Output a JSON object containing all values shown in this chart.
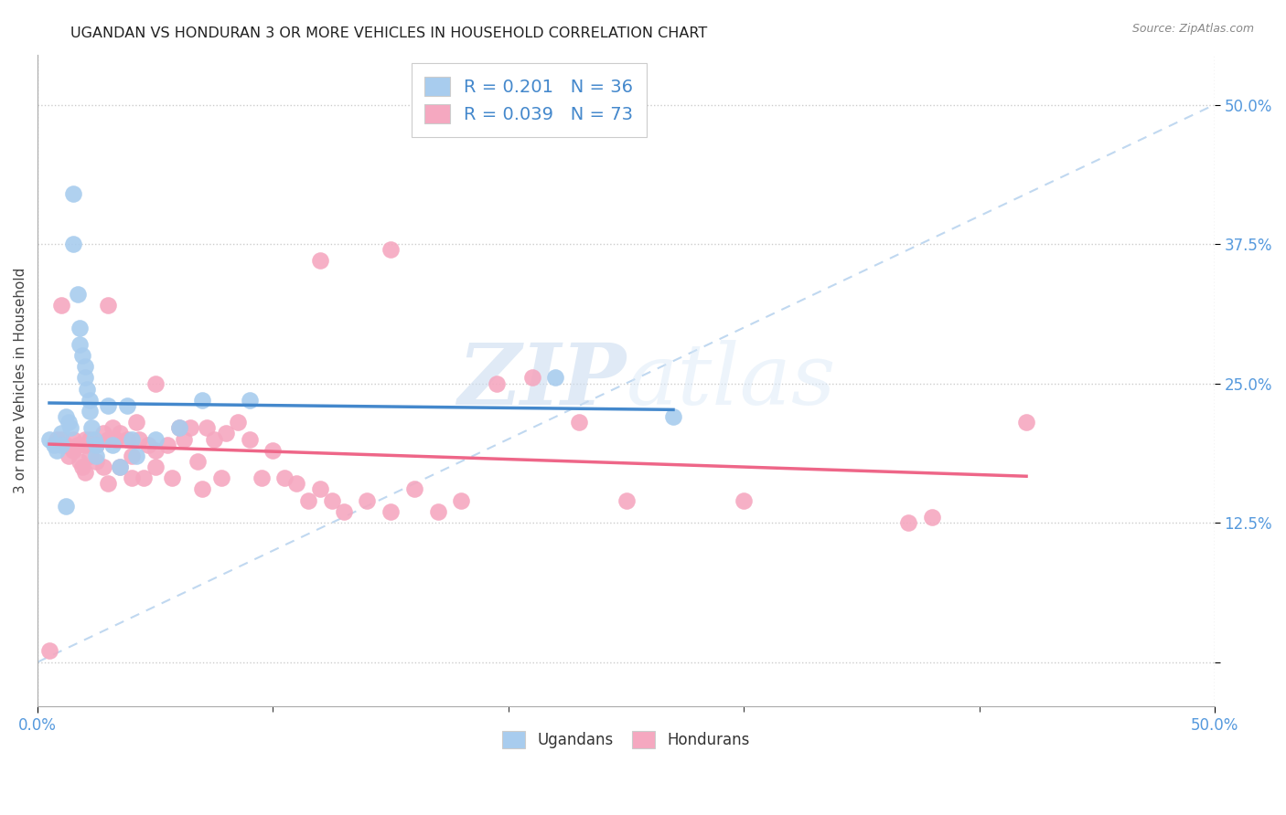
{
  "title": "UGANDAN VS HONDURAN 3 OR MORE VEHICLES IN HOUSEHOLD CORRELATION CHART",
  "source": "Source: ZipAtlas.com",
  "ylabel": "3 or more Vehicles in Household",
  "xlim": [
    0.0,
    0.5
  ],
  "ylim": [
    -0.04,
    0.545
  ],
  "yticks": [
    0.0,
    0.125,
    0.25,
    0.375,
    0.5
  ],
  "ytick_labels": [
    "",
    "12.5%",
    "25.0%",
    "37.5%",
    "50.0%"
  ],
  "xtick_vals": [
    0.0,
    0.5
  ],
  "xtick_labels": [
    "0.0%",
    "50.0%"
  ],
  "legend_r_ugandan": "0.201",
  "legend_n_ugandan": "36",
  "legend_r_honduran": "0.039",
  "legend_n_honduran": "73",
  "ugandan_color": "#A8CCEE",
  "honduran_color": "#F5A8C0",
  "ugandan_line_color": "#4488CC",
  "honduran_line_color": "#EE6688",
  "diagonal_color": "#C0D8F0",
  "background_color": "#FFFFFF",
  "watermark_zip": "ZIP",
  "watermark_atlas": "atlas",
  "ugandan_x": [
    0.005,
    0.007,
    0.008,
    0.01,
    0.01,
    0.012,
    0.013,
    0.014,
    0.015,
    0.015,
    0.017,
    0.018,
    0.018,
    0.019,
    0.02,
    0.02,
    0.021,
    0.022,
    0.022,
    0.023,
    0.024,
    0.025,
    0.025,
    0.03,
    0.032,
    0.035,
    0.038,
    0.04,
    0.042,
    0.05,
    0.06,
    0.07,
    0.012,
    0.22,
    0.27,
    0.09
  ],
  "ugandan_y": [
    0.2,
    0.195,
    0.19,
    0.205,
    0.195,
    0.22,
    0.215,
    0.21,
    0.375,
    0.42,
    0.33,
    0.3,
    0.285,
    0.275,
    0.265,
    0.255,
    0.245,
    0.235,
    0.225,
    0.21,
    0.2,
    0.195,
    0.185,
    0.23,
    0.195,
    0.175,
    0.23,
    0.2,
    0.185,
    0.2,
    0.21,
    0.235,
    0.14,
    0.255,
    0.22,
    0.235
  ],
  "honduran_x": [
    0.005,
    0.008,
    0.01,
    0.012,
    0.013,
    0.015,
    0.015,
    0.017,
    0.018,
    0.019,
    0.02,
    0.02,
    0.02,
    0.022,
    0.022,
    0.025,
    0.025,
    0.028,
    0.028,
    0.03,
    0.03,
    0.032,
    0.033,
    0.035,
    0.035,
    0.038,
    0.04,
    0.04,
    0.042,
    0.043,
    0.045,
    0.047,
    0.05,
    0.05,
    0.055,
    0.057,
    0.06,
    0.062,
    0.065,
    0.068,
    0.07,
    0.072,
    0.075,
    0.078,
    0.08,
    0.085,
    0.09,
    0.095,
    0.1,
    0.105,
    0.11,
    0.115,
    0.12,
    0.125,
    0.13,
    0.14,
    0.15,
    0.16,
    0.17,
    0.18,
    0.195,
    0.21,
    0.23,
    0.25,
    0.01,
    0.03,
    0.05,
    0.12,
    0.15,
    0.3,
    0.38,
    0.42,
    0.37
  ],
  "honduran_y": [
    0.01,
    0.2,
    0.2,
    0.195,
    0.185,
    0.2,
    0.19,
    0.195,
    0.18,
    0.175,
    0.2,
    0.195,
    0.17,
    0.2,
    0.185,
    0.195,
    0.18,
    0.205,
    0.175,
    0.2,
    0.16,
    0.21,
    0.2,
    0.205,
    0.175,
    0.2,
    0.185,
    0.165,
    0.215,
    0.2,
    0.165,
    0.195,
    0.19,
    0.175,
    0.195,
    0.165,
    0.21,
    0.2,
    0.21,
    0.18,
    0.155,
    0.21,
    0.2,
    0.165,
    0.205,
    0.215,
    0.2,
    0.165,
    0.19,
    0.165,
    0.16,
    0.145,
    0.155,
    0.145,
    0.135,
    0.145,
    0.135,
    0.155,
    0.135,
    0.145,
    0.25,
    0.255,
    0.215,
    0.145,
    0.32,
    0.32,
    0.25,
    0.36,
    0.37,
    0.145,
    0.13,
    0.215,
    0.125
  ]
}
